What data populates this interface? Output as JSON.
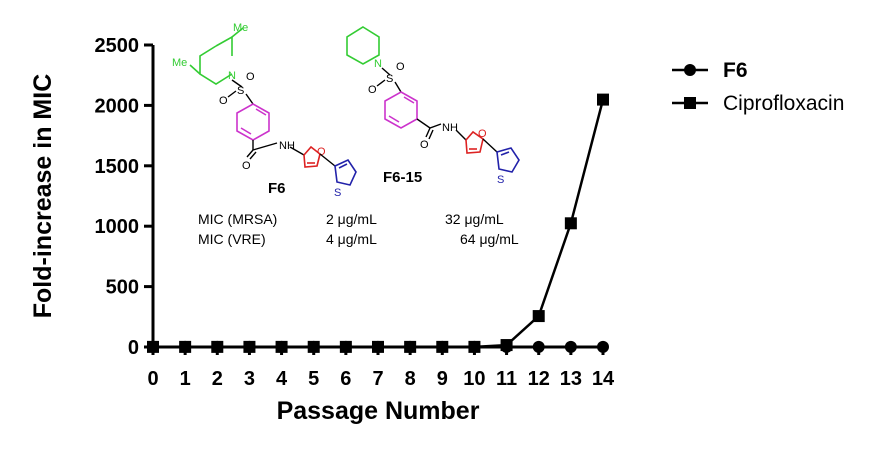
{
  "chart_data": {
    "type": "line",
    "xlabel": "Passage Number",
    "ylabel": "Fold-increase in MIC",
    "x": [
      0,
      1,
      2,
      3,
      4,
      5,
      6,
      7,
      8,
      9,
      10,
      11,
      12,
      13,
      14
    ],
    "xlim": [
      0,
      14
    ],
    "ylim": [
      0,
      2500
    ],
    "yticks": [
      0,
      500,
      1000,
      1500,
      2000,
      2500
    ],
    "grid": false,
    "legend_position": "right",
    "series": [
      {
        "name": "F6",
        "marker": "circle",
        "color": "#000000",
        "values": [
          1,
          1,
          1,
          1,
          1,
          1,
          1,
          1,
          1,
          1,
          1,
          1,
          1,
          1,
          1
        ]
      },
      {
        "name": "Ciprofloxacin",
        "marker": "square",
        "color": "#000000",
        "values": [
          1,
          1,
          1,
          1,
          1,
          1,
          1,
          1,
          1,
          1,
          1,
          16,
          256,
          1024,
          2048
        ]
      }
    ]
  },
  "inset": {
    "compounds": [
      {
        "label": "F6",
        "mic_mrsa": "2 μg/mL",
        "mic_vre": "4 μg/mL"
      },
      {
        "label": "F6-15",
        "mic_mrsa": "32 μg/mL",
        "mic_vre": "64 μg/mL"
      }
    ],
    "row_labels": {
      "mrsa": "MIC (MRSA)",
      "vre": "MIC (VRE)"
    },
    "atoms": {
      "methyl": "Me",
      "nitrogen": "N",
      "sulfur": "S",
      "oxygen": "O",
      "amide_nh": "NH"
    },
    "colors": {
      "amine": "#33cc33",
      "phenyl": "#cc33cc",
      "furan": "#dd2222",
      "thiophene": "#2222aa",
      "bonds": "#000000"
    }
  }
}
